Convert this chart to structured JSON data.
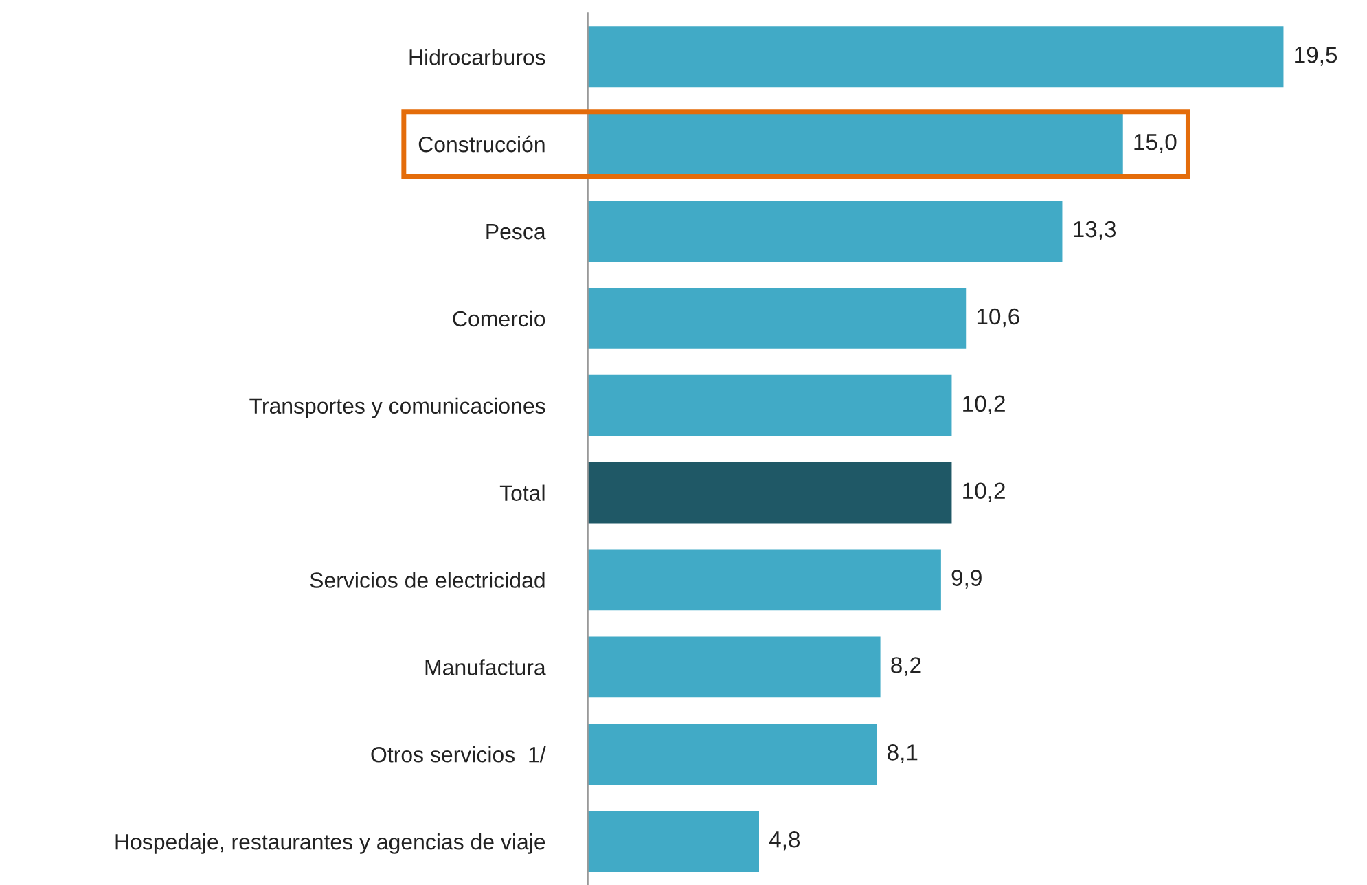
{
  "chart_data": {
    "type": "bar",
    "orientation": "horizontal",
    "categories": [
      "Hidrocarburos",
      "Construcción",
      "Pesca",
      "Comercio",
      "Transportes y comunicaciones",
      "Total",
      "Servicios de electricidad",
      "Manufactura",
      "Otros servicios  1/",
      "Hospedaje, restaurantes y agencias de viaje"
    ],
    "values": [
      19.5,
      15.0,
      13.3,
      10.6,
      10.2,
      10.2,
      9.9,
      8.2,
      8.1,
      4.8
    ],
    "colors": [
      "#41aac6",
      "#41aac6",
      "#41aac6",
      "#41aac6",
      "#41aac6",
      "#1f5866",
      "#41aac6",
      "#41aac6",
      "#41aac6",
      "#41aac6"
    ],
    "value_labels": [
      "19,5",
      "15,0",
      "13,3",
      "10,6",
      "10,2",
      "10,2",
      "9,9",
      "8,2",
      "8,1",
      "4,8"
    ],
    "grid": false,
    "legend": false
  }
}
